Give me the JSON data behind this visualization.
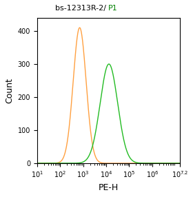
{
  "title_part1": "bs-12313R-2/ ",
  "title_part2": "P1",
  "title_color1": "black",
  "title_color2": "green",
  "xlabel": "PE-H",
  "ylabel": "Count",
  "ylim": [
    0,
    440
  ],
  "yticks": [
    0,
    100,
    200,
    300,
    400
  ],
  "xlog_min": 1,
  "xlog_max": 7.2,
  "orange_color": "#FFA040",
  "green_color": "#22BB22",
  "orange_mean": 2.85,
  "orange_std": 0.28,
  "orange_peak_y": 410,
  "green_mean": 4.12,
  "green_std": 0.38,
  "green_peak_y": 300,
  "background_color": "white",
  "figsize": [
    2.8,
    2.86
  ],
  "dpi": 100
}
